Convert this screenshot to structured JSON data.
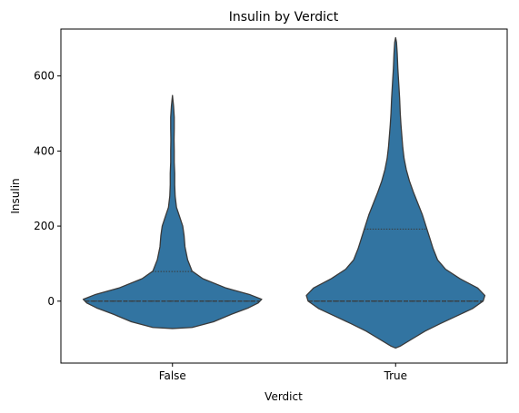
{
  "chart_data": {
    "type": "violin",
    "title": "Insulin by Verdict",
    "xlabel": "Verdict",
    "ylabel": "Insulin",
    "ylim": [
      -165,
      725
    ],
    "yticks": [
      0,
      200,
      400,
      600
    ],
    "categories": [
      "False",
      "True"
    ],
    "fill_color": "#3274a1",
    "edge_color": "#3a3a3a",
    "grid": false,
    "legend": "none",
    "violins": [
      {
        "category": "False",
        "min": -73,
        "max": 548,
        "median": 0,
        "q1": 0,
        "q3": 79,
        "profile": [
          [
            -73,
            0.0
          ],
          [
            -70,
            0.22
          ],
          [
            -55,
            0.46
          ],
          [
            -35,
            0.66
          ],
          [
            -18,
            0.85
          ],
          [
            -5,
            0.96
          ],
          [
            5,
            1.0
          ],
          [
            18,
            0.86
          ],
          [
            35,
            0.6
          ],
          [
            60,
            0.34
          ],
          [
            80,
            0.22
          ],
          [
            110,
            0.17
          ],
          [
            145,
            0.14
          ],
          [
            175,
            0.13
          ],
          [
            200,
            0.115
          ],
          [
            225,
            0.08
          ],
          [
            250,
            0.045
          ],
          [
            280,
            0.03
          ],
          [
            310,
            0.025
          ],
          [
            340,
            0.025
          ],
          [
            370,
            0.02
          ],
          [
            400,
            0.02
          ],
          [
            430,
            0.018
          ],
          [
            460,
            0.02
          ],
          [
            490,
            0.02
          ],
          [
            520,
            0.012
          ],
          [
            548,
            0.0
          ]
        ]
      },
      {
        "category": "True",
        "min": -125,
        "max": 702,
        "median": 0,
        "q1": 0,
        "q3": 192,
        "profile": [
          [
            -125,
            0.0
          ],
          [
            -120,
            0.05
          ],
          [
            -100,
            0.19
          ],
          [
            -80,
            0.33
          ],
          [
            -60,
            0.5
          ],
          [
            -40,
            0.68
          ],
          [
            -20,
            0.86
          ],
          [
            0,
            0.98
          ],
          [
            15,
            1.0
          ],
          [
            35,
            0.92
          ],
          [
            60,
            0.72
          ],
          [
            85,
            0.56
          ],
          [
            110,
            0.47
          ],
          [
            140,
            0.42
          ],
          [
            170,
            0.38
          ],
          [
            200,
            0.34
          ],
          [
            230,
            0.3
          ],
          [
            260,
            0.25
          ],
          [
            290,
            0.2
          ],
          [
            320,
            0.155
          ],
          [
            350,
            0.12
          ],
          [
            380,
            0.095
          ],
          [
            410,
            0.08
          ],
          [
            440,
            0.07
          ],
          [
            470,
            0.06
          ],
          [
            500,
            0.052
          ],
          [
            540,
            0.045
          ],
          [
            580,
            0.035
          ],
          [
            620,
            0.025
          ],
          [
            660,
            0.018
          ],
          [
            690,
            0.01
          ],
          [
            702,
            0.0
          ]
        ]
      }
    ]
  }
}
